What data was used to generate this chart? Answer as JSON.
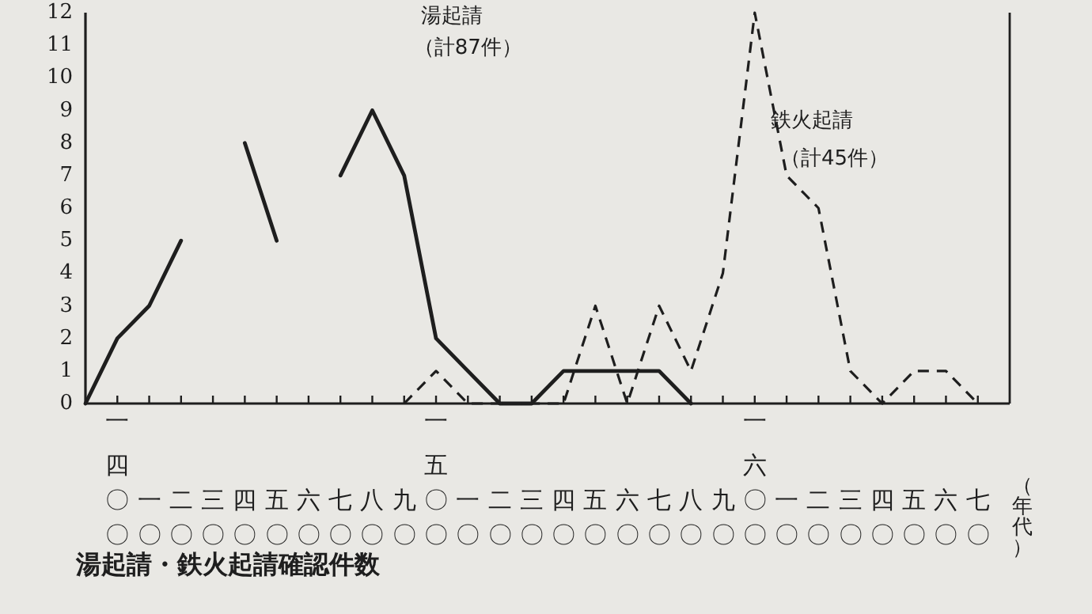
{
  "chart_data": {
    "type": "line",
    "title": "湯起請・鉄火起請確認件数",
    "xlabel": "（年代）",
    "annotations": [
      "湯起請",
      "（計87件）",
      "鉄火起請",
      "（計45件）"
    ],
    "ylim": [
      0,
      12
    ],
    "yticks": [
      0,
      1,
      2,
      3,
      4,
      5,
      6,
      7,
      8,
      9,
      10,
      11,
      12
    ],
    "categories": [
      null,
      "一四〇〇",
      "一〇",
      "二〇",
      "三〇",
      "四〇",
      "五〇",
      "六〇",
      "七〇",
      "八〇",
      "九〇",
      "一五〇〇",
      "一〇",
      "二〇",
      "三〇",
      "四〇",
      "五〇",
      "六〇",
      "七〇",
      "八〇",
      "九〇",
      "一六〇〇",
      "一〇",
      "二〇",
      "三〇",
      "四〇",
      "五〇",
      "六〇",
      "七〇"
    ],
    "grid": false,
    "series": [
      {
        "color": "#1e1e1e",
        "line_style": "solid",
        "values": [
          0,
          2,
          3,
          5,
          null,
          8,
          5,
          null,
          7,
          9,
          7,
          2,
          1,
          0,
          0,
          1,
          1,
          1,
          1,
          0,
          null,
          null,
          null,
          null,
          null,
          null,
          null,
          null,
          null
        ]
      },
      {
        "color": "#1e1e1e",
        "line_style": "dashed",
        "values": [
          null,
          null,
          null,
          null,
          null,
          null,
          null,
          null,
          null,
          null,
          0,
          1,
          0,
          0,
          0,
          0,
          3,
          0,
          3,
          1,
          4,
          12,
          7,
          6,
          1,
          0,
          1,
          1,
          0
        ]
      }
    ]
  }
}
